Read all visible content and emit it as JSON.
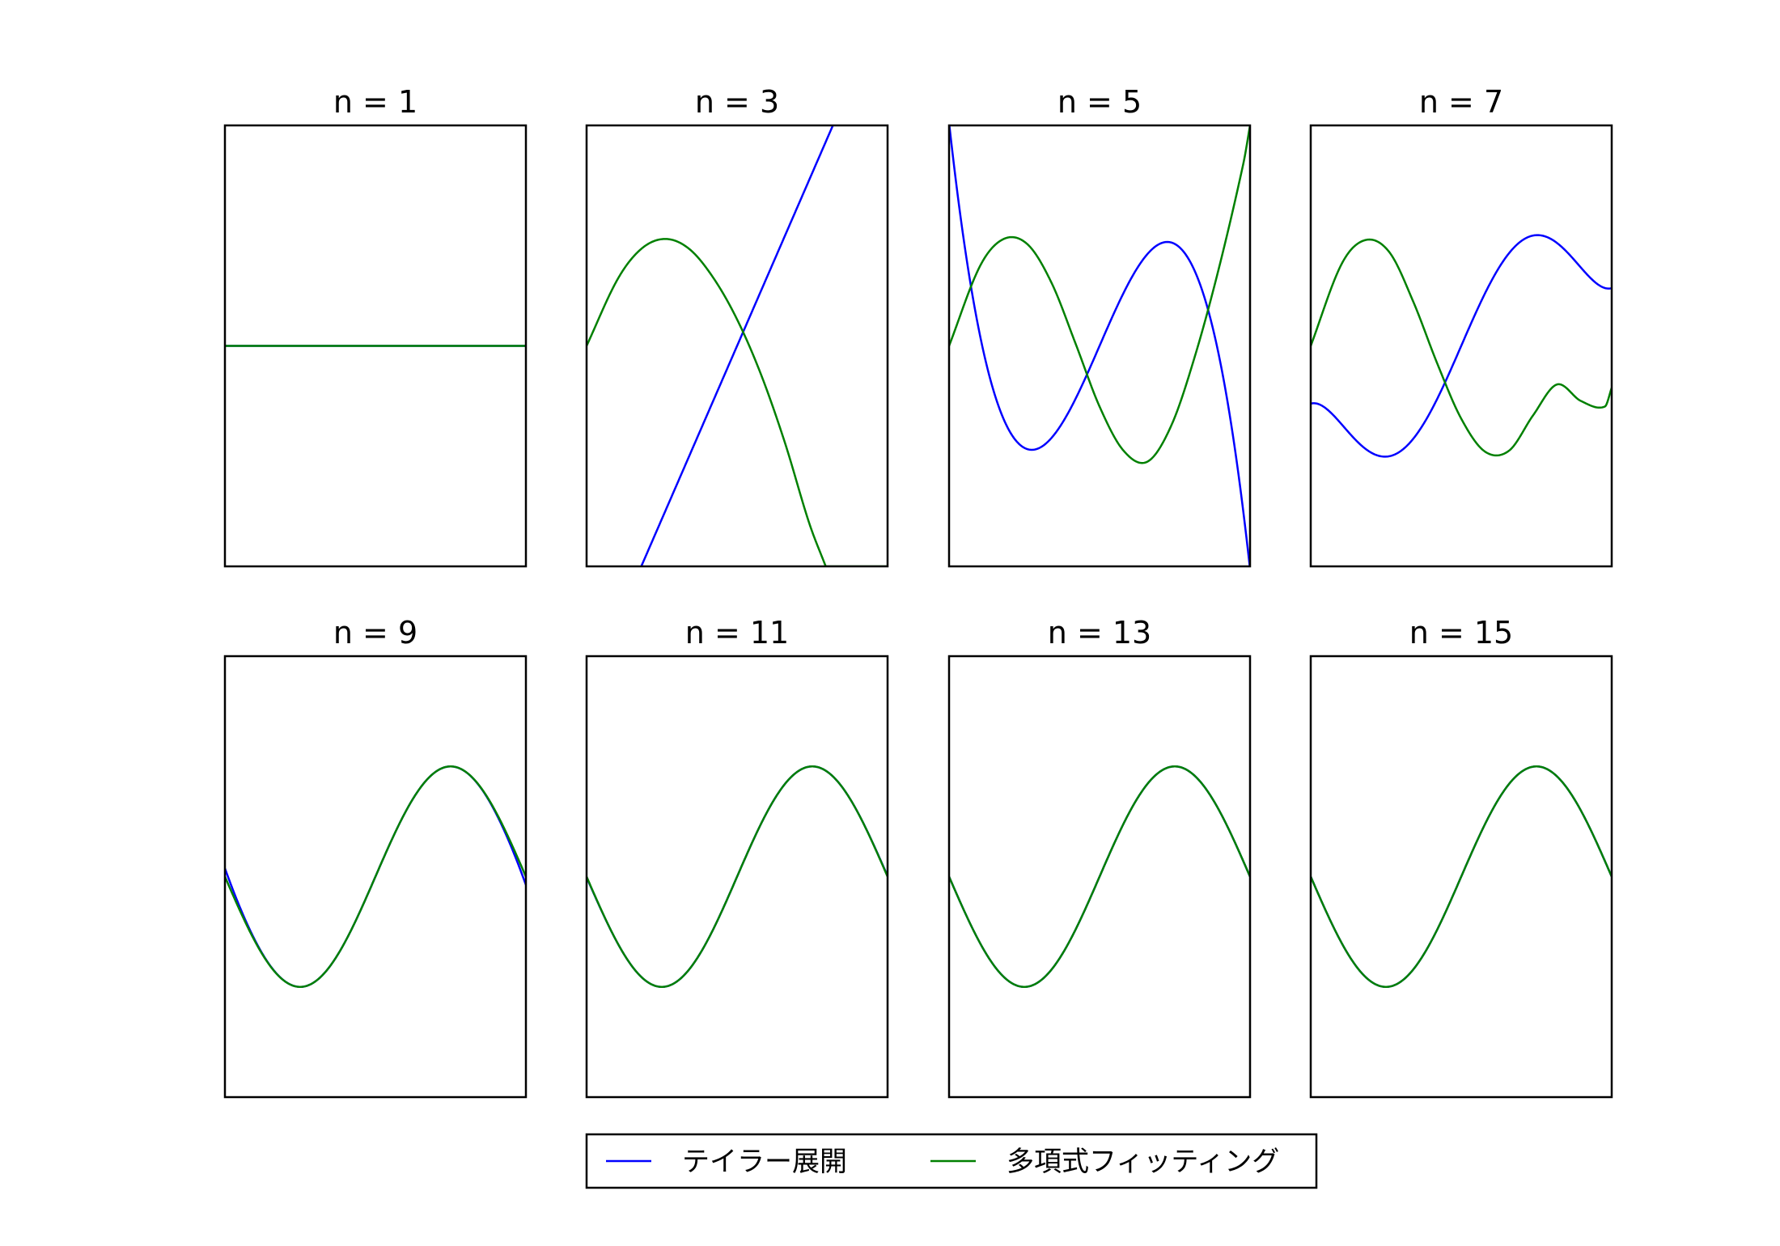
{
  "chart_data": {
    "type": "line",
    "x_range": [
      -3.1416,
      3.1416
    ],
    "ylim": [
      -2,
      2
    ],
    "grid": false,
    "ticks": false,
    "layout": "2 rows x 4 columns",
    "colors": {
      "taylor": "#0000ff",
      "fit": "#008000"
    },
    "legend": {
      "placement": "bottom-center",
      "entries": [
        {
          "name": "テイラー展開",
          "color": "#0000ff",
          "series": "taylor"
        },
        {
          "name": "多項式フィッティング",
          "color": "#008000",
          "series": "fit"
        }
      ]
    },
    "panels": [
      {
        "title": "n = 1",
        "n": 1,
        "taylor_coeffs": [
          0
        ],
        "fit": {
          "type": "constant",
          "value": 0
        }
      },
      {
        "title": "n = 3",
        "n": 3,
        "taylor_coeffs": [
          0,
          1
        ],
        "fit": {
          "type": "points",
          "x": [
            -3.1416,
            -2.5,
            -2.0,
            -1.5,
            -1.0,
            -0.5,
            0.0,
            0.5,
            1.0,
            1.5,
            1.85
          ],
          "y": [
            0.0,
            0.6,
            0.88,
            0.97,
            0.88,
            0.62,
            0.24,
            -0.26,
            -0.88,
            -1.6,
            -2.0
          ]
        }
      },
      {
        "title": "n = 5",
        "n": 5,
        "taylor_coeffs": [
          0,
          1,
          0,
          -0.16667
        ],
        "fit": {
          "type": "points",
          "x": [
            -3.1416,
            -2.5,
            -2.0,
            -1.5,
            -1.0,
            -0.5,
            0.0,
            0.5,
            1.0,
            1.5,
            2.0,
            2.5,
            3.0,
            3.1416
          ],
          "y": [
            0.0,
            0.72,
            0.97,
            0.92,
            0.57,
            0.02,
            -0.55,
            -0.95,
            -1.05,
            -0.72,
            -0.08,
            0.72,
            1.65,
            2.0
          ]
        }
      },
      {
        "title": "n = 7",
        "n": 7,
        "taylor_coeffs": [
          0,
          1,
          0,
          -0.16667,
          0,
          0.0083333
        ],
        "fit": {
          "type": "points",
          "x": [
            -3.1416,
            -2.5,
            -2.0,
            -1.5,
            -1.0,
            -0.5,
            0.0,
            0.5,
            1.0,
            1.5,
            2.0,
            2.5,
            3.0,
            3.1416
          ],
          "y": [
            0.0,
            0.74,
            0.96,
            0.85,
            0.4,
            -0.16,
            -0.66,
            -0.96,
            -0.95,
            -0.63,
            -0.35,
            -0.5,
            -0.55,
            -0.38
          ]
        }
      },
      {
        "title": "n = 9",
        "n": 9,
        "taylor_coeffs": [
          0,
          1,
          0,
          -0.16667,
          0,
          0.0083333,
          0,
          -0.00019841
        ],
        "fit": {
          "type": "sine"
        }
      },
      {
        "title": "n = 11",
        "n": 11,
        "taylor_coeffs": [
          0,
          1,
          0,
          -0.16667,
          0,
          0.0083333,
          0,
          -0.00019841,
          0,
          2.7557e-06
        ],
        "fit": {
          "type": "sine"
        }
      },
      {
        "title": "n = 13",
        "n": 13,
        "taylor_coeffs": [
          0,
          1,
          0,
          -0.16667,
          0,
          0.0083333,
          0,
          -0.00019841,
          0,
          2.7557e-06,
          0,
          -2.5052e-08
        ],
        "fit": {
          "type": "sine"
        }
      },
      {
        "title": "n = 15",
        "n": 15,
        "taylor_coeffs": [
          0,
          1,
          0,
          -0.16667,
          0,
          0.0083333,
          0,
          -0.00019841,
          0,
          2.7557e-06,
          0,
          -2.5052e-08,
          0,
          1.6059e-10
        ],
        "fit": {
          "type": "sine"
        }
      }
    ]
  }
}
